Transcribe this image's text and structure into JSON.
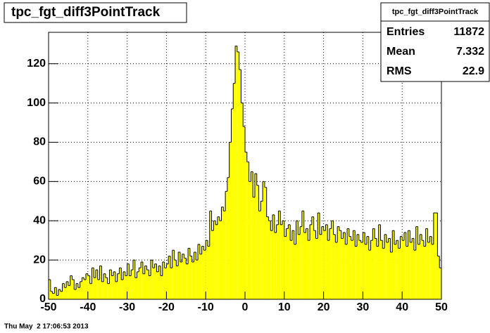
{
  "chart_data": {
    "type": "histogram",
    "title": "tpc_fgt_diff3PointTrack",
    "timestamp": "Thu May  2 17:06:53 2013",
    "stats": {
      "title": "tpc_fgt_diff3PointTrack",
      "rows": [
        [
          "Entries",
          "11872"
        ],
        [
          "Mean",
          "7.332"
        ],
        [
          "RMS",
          "22.9"
        ]
      ]
    },
    "color": "#ffff00",
    "bins": [
      -50,
      -49.5,
      -49,
      -48.5,
      -48,
      -47.5,
      -47,
      -46.5,
      -46,
      -45.5,
      -45,
      -44.5,
      -44,
      -43.5,
      -43,
      -42.5,
      -42,
      -41.5,
      -41,
      -40.5,
      -40,
      -39.5,
      -39,
      -38.5,
      -38,
      -37.5,
      -37,
      -36.5,
      -36,
      -35.5,
      -35,
      -34.5,
      -34,
      -33.5,
      -33,
      -32.5,
      -32,
      -31.5,
      -31,
      -30.5,
      -30,
      -29.5,
      -29,
      -28.5,
      -28,
      -27.5,
      -27,
      -26.5,
      -26,
      -25.5,
      -25,
      -24.5,
      -24,
      -23.5,
      -23,
      -22.5,
      -22,
      -21.5,
      -21,
      -20.5,
      -20,
      -19.5,
      -19,
      -18.5,
      -18,
      -17.5,
      -17,
      -16.5,
      -16,
      -15.5,
      -15,
      -14.5,
      -14,
      -13.5,
      -13,
      -12.5,
      -12,
      -11.5,
      -11,
      -10.5,
      -10,
      -9.5,
      -9,
      -8.5,
      -8,
      -7.5,
      -7,
      -6.5,
      -6,
      -5.5,
      -5,
      -4.5,
      -4,
      -3.5,
      -3,
      -2.5,
      -2,
      -1.5,
      -1,
      -0.5,
      0,
      0.5,
      1,
      1.5,
      2,
      2.5,
      3,
      3.5,
      4,
      4.5,
      5,
      5.5,
      6,
      6.5,
      7,
      7.5,
      8,
      8.5,
      9,
      9.5,
      10,
      10.5,
      11,
      11.5,
      12,
      12.5,
      13,
      13.5,
      14,
      14.5,
      15,
      15.5,
      16,
      16.5,
      17,
      17.5,
      18,
      18.5,
      19,
      19.5,
      20,
      20.5,
      21,
      21.5,
      22,
      22.5,
      23,
      23.5,
      24,
      24.5,
      25,
      25.5,
      26,
      26.5,
      27,
      27.5,
      28,
      28.5,
      29,
      29.5,
      30,
      30.5,
      31,
      31.5,
      32,
      32.5,
      33,
      33.5,
      34,
      34.5,
      35,
      35.5,
      36,
      36.5,
      37,
      37.5,
      38,
      38.5,
      39,
      39.5,
      40,
      40.5,
      41,
      41.5,
      42,
      42.5,
      43,
      43.5,
      44,
      44.5,
      45,
      45.5,
      46,
      46.5,
      47,
      47.5,
      48,
      48.5,
      49,
      49.5,
      50
    ],
    "values": [
      10,
      4,
      3,
      6,
      2,
      5,
      4,
      8,
      6,
      9,
      7,
      12,
      10,
      5,
      8,
      6,
      9,
      11,
      10,
      13,
      12,
      8,
      16,
      11,
      15,
      10,
      17,
      9,
      13,
      11,
      8,
      15,
      12,
      14,
      9,
      13,
      16,
      10,
      14,
      12,
      18,
      12,
      15,
      20,
      11,
      14,
      16,
      19,
      13,
      17,
      15,
      12,
      20,
      16,
      18,
      14,
      17,
      12,
      19,
      16,
      18,
      22,
      16,
      25,
      20,
      17,
      24,
      19,
      23,
      21,
      18,
      26,
      22,
      19,
      24,
      20,
      28,
      23,
      27,
      25,
      30,
      27,
      45,
      35,
      40,
      38,
      42,
      40,
      47,
      45,
      55,
      62,
      80,
      97,
      110,
      129,
      126,
      117,
      100,
      88,
      75,
      70,
      60,
      65,
      52,
      64,
      58,
      45,
      50,
      60,
      57,
      42,
      40,
      35,
      43,
      34,
      38,
      45,
      38,
      40,
      32,
      36,
      38,
      30,
      35,
      28,
      40,
      33,
      37,
      45,
      34,
      36,
      30,
      38,
      42,
      35,
      31,
      44,
      33,
      37,
      35,
      38,
      30,
      36,
      40,
      33,
      29,
      37,
      35,
      31,
      34,
      28,
      36,
      32,
      30,
      35,
      27,
      33,
      30,
      29,
      34,
      28,
      32,
      25,
      30,
      36,
      31,
      27,
      38,
      30,
      26,
      33,
      29,
      31,
      24,
      35,
      28,
      30,
      26,
      32,
      30,
      34,
      27,
      35,
      29,
      31,
      25,
      37,
      28,
      33,
      30,
      27,
      36,
      29,
      32,
      28,
      44,
      44,
      22,
      16
    ],
    "xlim": [
      -50,
      50
    ],
    "xticks": [
      -50,
      -40,
      -30,
      -20,
      -10,
      0,
      10,
      20,
      30,
      40,
      50
    ],
    "ylim": [
      0,
      136
    ],
    "yticks": [
      0,
      20,
      40,
      60,
      80,
      100,
      120
    ],
    "grid": true
  }
}
